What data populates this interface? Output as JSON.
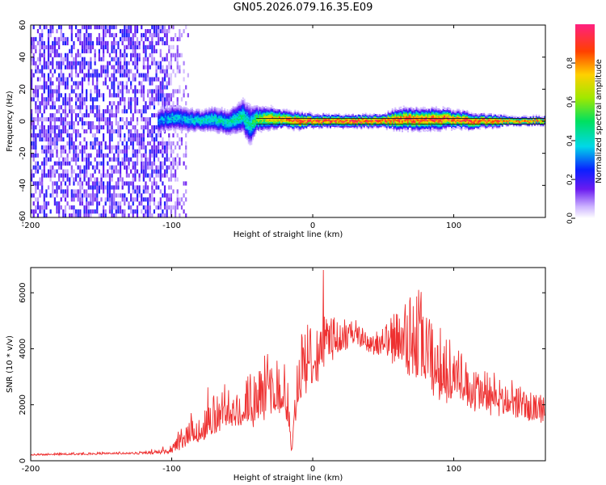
{
  "title": "GN05.2026.079.16.35.E09",
  "chart_data": [
    {
      "type": "heatmap",
      "xlabel": "Height of straight line (km)",
      "ylabel": "Frequency (Hz)",
      "xlim": [
        -200,
        165
      ],
      "ylim": [
        -60,
        60
      ],
      "xticks": [
        -200,
        -100,
        0,
        100
      ],
      "yticks": [
        -60,
        -40,
        -20,
        0,
        20,
        40,
        60
      ],
      "colorbar": {
        "label": "Normalized spectral amplitude",
        "ticks": [
          "0.0",
          "0.2",
          "0.4",
          "0.6",
          "0.8"
        ],
        "range": [
          0,
          1
        ]
      },
      "noise_region": {
        "x_from": -200,
        "x_to": -103,
        "level": 0.1
      },
      "band": {
        "x": [
          -110,
          -100,
          -90,
          -80,
          -70,
          -60,
          -50,
          -45,
          -40,
          -30,
          -20,
          -10,
          0,
          10,
          20,
          30,
          40,
          50,
          60,
          70,
          80,
          90,
          100,
          110,
          120,
          130,
          140,
          150,
          160,
          165
        ],
        "center_hz": [
          0,
          2,
          1,
          0,
          1,
          -1,
          3,
          -3,
          1,
          2,
          1,
          0,
          0,
          0,
          0,
          0,
          0,
          0,
          1,
          1,
          1,
          1,
          1,
          0,
          0,
          0,
          0,
          0,
          0,
          0
        ],
        "halfwidth_hz": [
          6,
          6,
          6,
          5,
          6,
          6,
          8,
          10,
          6,
          5,
          4,
          4,
          3,
          3,
          3,
          3,
          3,
          3,
          5,
          5,
          5,
          5,
          4,
          4,
          3,
          3,
          2,
          2,
          2,
          2
        ],
        "peak_amplitude": [
          0.35,
          0.4,
          0.4,
          0.45,
          0.45,
          0.45,
          0.5,
          0.45,
          0.6,
          0.8,
          0.85,
          0.95,
          0.95,
          0.95,
          0.95,
          0.95,
          0.95,
          0.95,
          0.95,
          0.95,
          0.95,
          0.95,
          0.95,
          0.95,
          0.95,
          0.95,
          0.9,
          0.9,
          0.9,
          0.9
        ]
      }
    },
    {
      "type": "line",
      "xlabel": "Height of straight line (km)",
      "ylabel": "SNR (10 * v/v)",
      "xlim": [
        -200,
        165
      ],
      "ylim": [
        0,
        6900
      ],
      "xticks": [
        -200,
        -100,
        0,
        100
      ],
      "yticks": [
        0,
        2000,
        4000,
        6000
      ],
      "series": [
        {
          "color": "#ee3030",
          "x": [
            -200,
            -180,
            -160,
            -140,
            -120,
            -110,
            -100,
            -95,
            -90,
            -80,
            -70,
            -60,
            -50,
            -40,
            -30,
            -20,
            -15,
            -10,
            0,
            10,
            20,
            30,
            40,
            50,
            60,
            70,
            75,
            80,
            90,
            100,
            110,
            120,
            130,
            140,
            150,
            165
          ],
          "y": [
            200,
            220,
            230,
            250,
            250,
            280,
            350,
            500,
            700,
            900,
            1200,
            1500,
            1700,
            1900,
            2100,
            2200,
            400,
            2700,
            3300,
            3900,
            4200,
            4300,
            4100,
            3800,
            3900,
            3800,
            3400,
            3200,
            2800,
            2600,
            2300,
            2100,
            2000,
            1800,
            1700,
            1600
          ],
          "spread": [
            30,
            40,
            40,
            40,
            50,
            60,
            150,
            250,
            350,
            500,
            700,
            800,
            900,
            1000,
            1100,
            1100,
            200,
            1200,
            1100,
            900,
            600,
            400,
            400,
            600,
            900,
            1400,
            1700,
            1400,
            1100,
            900,
            800,
            700,
            600,
            500,
            500,
            500
          ]
        }
      ]
    }
  ]
}
